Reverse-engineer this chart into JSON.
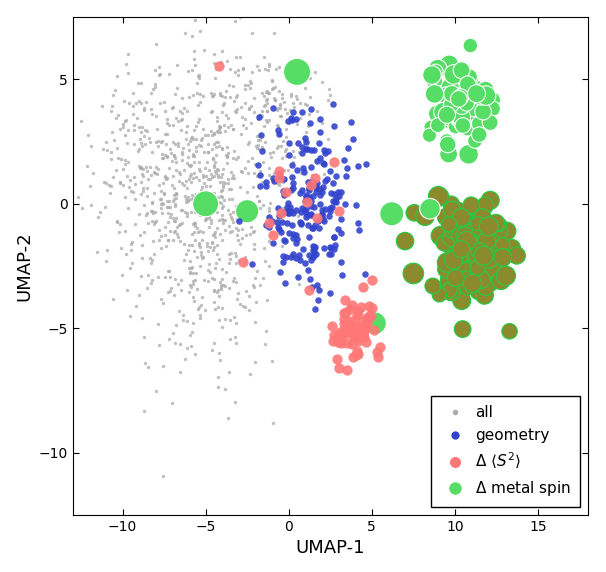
{
  "xlabel": "UMAP-1",
  "ylabel": "UMAP-2",
  "xlim": [
    -13,
    18
  ],
  "ylim": [
    -12.5,
    7.5
  ],
  "background_color": "#ffffff",
  "color_all": "#aaaaaa",
  "color_geom": "#3344cc",
  "color_s2": "#ff7777",
  "color_spin_green_fill": "#55dd66",
  "color_spin_olive_fill": "#8b8b2e",
  "color_spin_edge_green": "#22cc44",
  "color_spin_edge_white": "#ffffff",
  "size_all": 6,
  "size_geom": 22,
  "size_s2": 55,
  "spin_size_main": 130,
  "spin_size_scatter": 250
}
